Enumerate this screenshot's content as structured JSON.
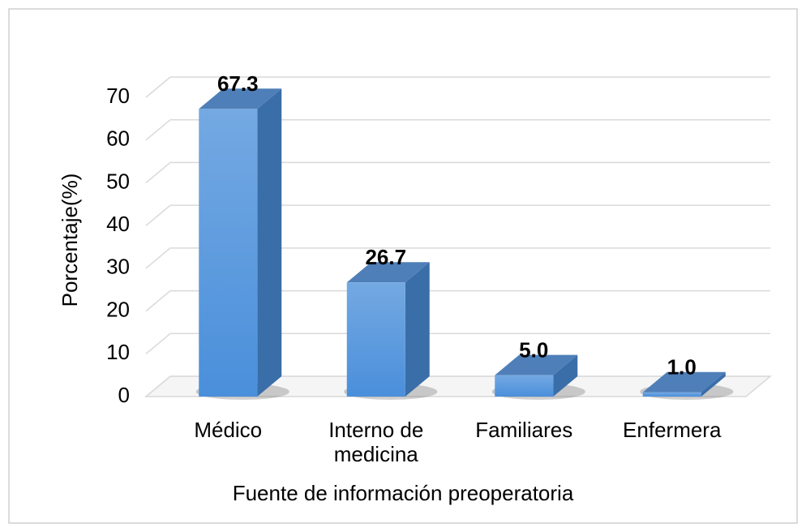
{
  "chart_data": {
    "type": "bar3d",
    "categories": [
      "Médico",
      "Interno de medicina",
      "Familiares",
      "Enfermera"
    ],
    "values": [
      67.3,
      26.7,
      5.0,
      1.0
    ],
    "value_labels": [
      "67.3",
      "26.7",
      "5.0",
      "1.0"
    ],
    "color": "#5b9bd5",
    "ylim": [
      0,
      70
    ],
    "yticks": [
      0,
      10,
      20,
      30,
      40,
      50,
      60,
      70
    ],
    "ylabel": "Porcentaje(%)",
    "xlabel": "Fuente de información preoperatoria",
    "grid": true
  }
}
